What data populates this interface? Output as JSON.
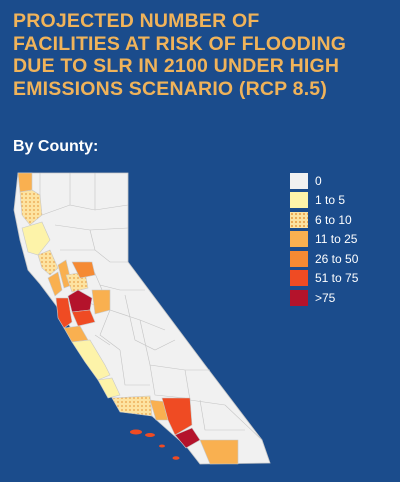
{
  "title_lines": [
    "PROJECTED NUMBER OF",
    "FACILITIES AT RISK OF FLOODING",
    "DUE TO SLR IN 2100 UNDER HIGH",
    "EMISSIONS SCENARIO (RCP 8.5)"
  ],
  "subtitle": "By County:",
  "legend": [
    {
      "label": "0",
      "color": "#f1f1f1",
      "pattern": "none"
    },
    {
      "label": "1 to 5",
      "color": "#fdf3a9",
      "pattern": "none"
    },
    {
      "label": "6 to 10",
      "color": "#fbd68a",
      "pattern": "dots"
    },
    {
      "label": "11 to 25",
      "color": "#f9b050",
      "pattern": "none"
    },
    {
      "label": "26 to 50",
      "color": "#f58a33",
      "pattern": "none"
    },
    {
      "label": "51 to 75",
      "color": "#ef4b23",
      "pattern": "none"
    },
    {
      "label": ">75",
      "color": "#b4132b",
      "pattern": "none"
    }
  ],
  "colors": {
    "background": "#1b4c8c",
    "title": "#f0b35a",
    "county_border": "#bdbdbd"
  }
}
